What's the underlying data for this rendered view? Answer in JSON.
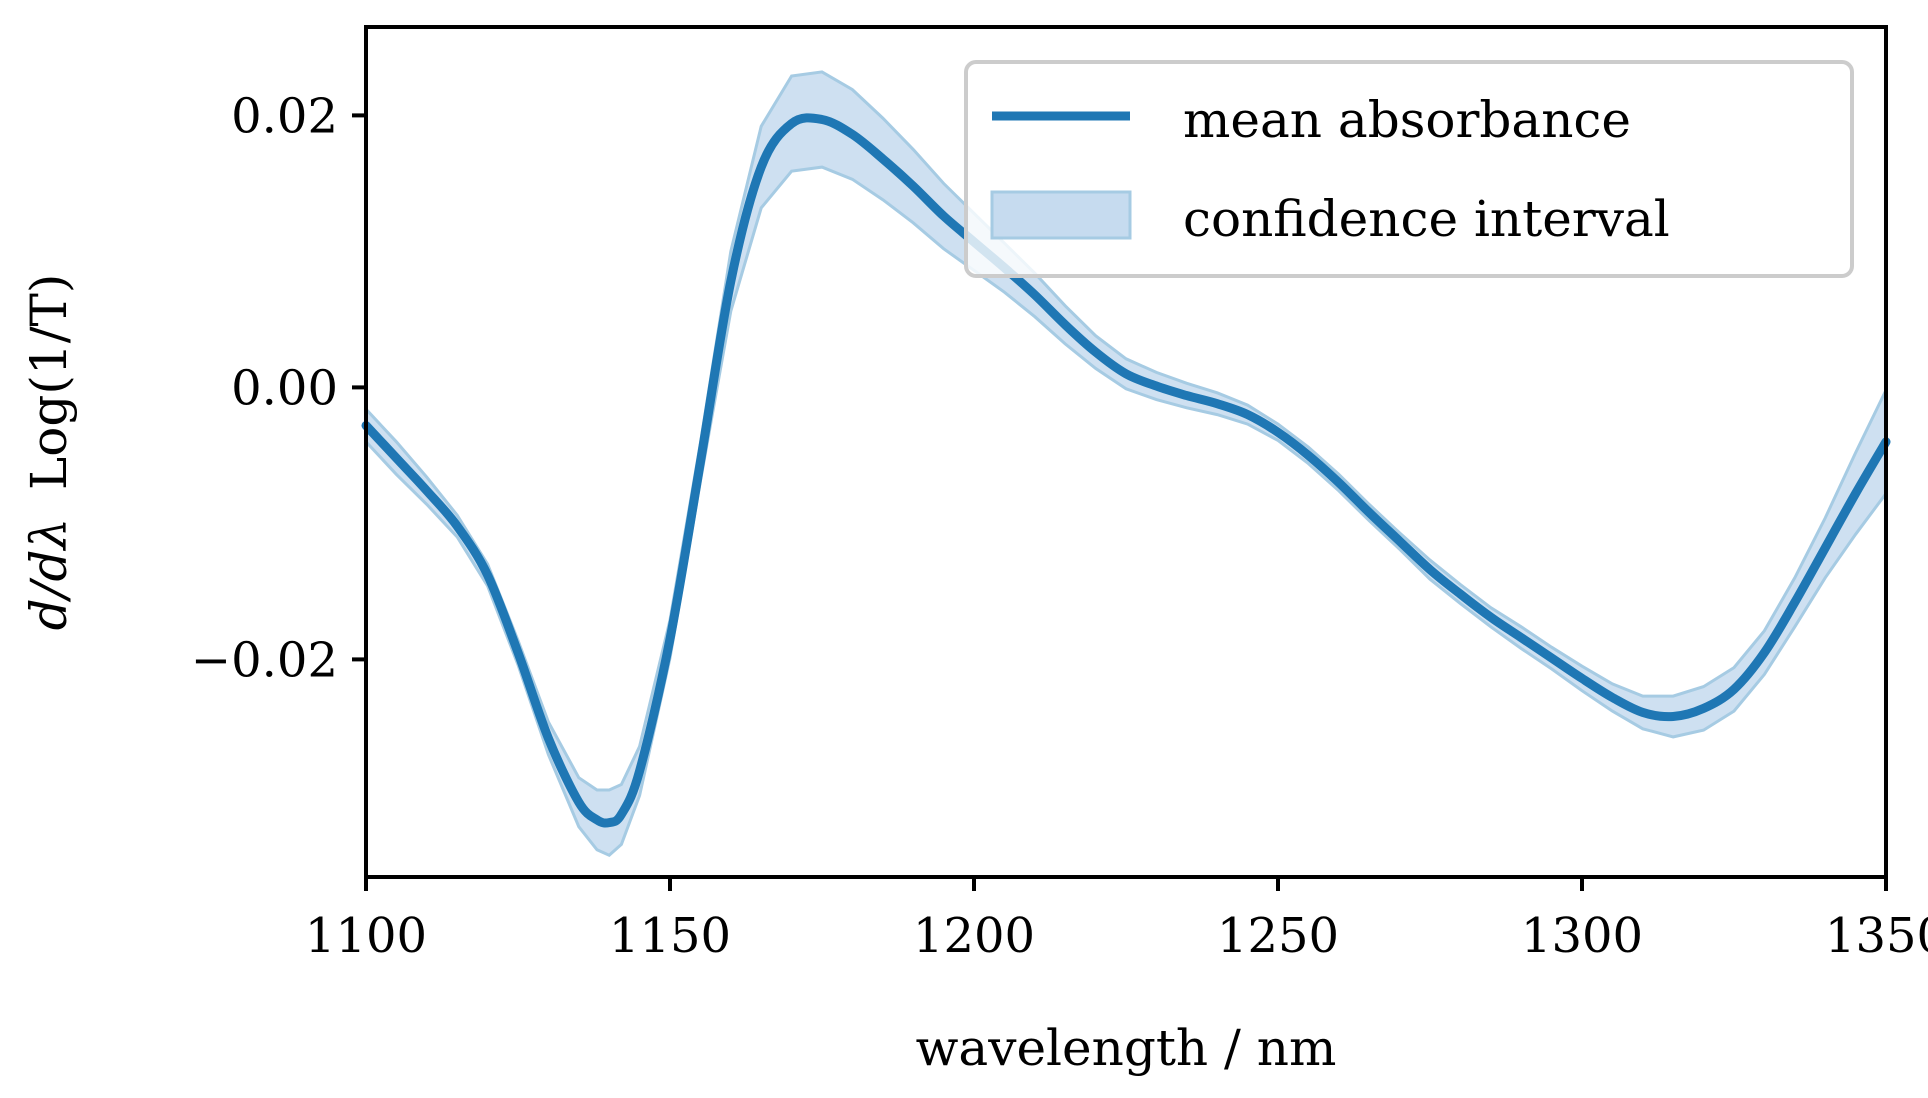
{
  "chart_data": {
    "type": "line",
    "xlabel": "wavelength / nm",
    "ylabel_parts": {
      "derivative": "d/dλ",
      "function": "Log(1/T)"
    },
    "xlim": [
      1100,
      1350
    ],
    "ylim": [
      -0.036,
      0.0265
    ],
    "xticks": [
      1100,
      1150,
      1200,
      1250,
      1300,
      1350
    ],
    "xtick_labels": [
      "1100",
      "1150",
      "1200",
      "1250",
      "1300",
      "1350"
    ],
    "yticks": [
      0.02,
      0.0,
      -0.02
    ],
    "ytick_labels": [
      "0.02",
      "0.00",
      "−0.02"
    ],
    "grid": false,
    "legend_position": "top-right",
    "colors": {
      "line": "#1f77b4",
      "band_fill": "#c6dbef",
      "band_edge": "#a6cbe3"
    },
    "series": [
      {
        "name": "mean absorbance",
        "kind": "line",
        "x": [
          1100,
          1105,
          1110,
          1115,
          1120,
          1125,
          1130,
          1135,
          1138,
          1140,
          1142,
          1145,
          1150,
          1155,
          1160,
          1165,
          1170,
          1175,
          1180,
          1185,
          1190,
          1195,
          1200,
          1205,
          1210,
          1215,
          1220,
          1225,
          1230,
          1235,
          1240,
          1245,
          1250,
          1255,
          1260,
          1265,
          1270,
          1275,
          1280,
          1285,
          1290,
          1295,
          1300,
          1305,
          1310,
          1315,
          1320,
          1325,
          1330,
          1335,
          1340,
          1345,
          1350
        ],
        "values": [
          -0.0028,
          -0.0052,
          -0.0076,
          -0.0102,
          -0.0138,
          -0.0195,
          -0.0258,
          -0.0305,
          -0.0318,
          -0.032,
          -0.0314,
          -0.0282,
          -0.0185,
          -0.0055,
          0.0078,
          0.0162,
          0.0194,
          0.0197,
          0.0186,
          0.0168,
          0.0148,
          0.0126,
          0.0107,
          0.0088,
          0.0068,
          0.0046,
          0.0026,
          0.001,
          0.0001,
          -0.0006,
          -0.0012,
          -0.002,
          -0.0033,
          -0.005,
          -0.007,
          -0.0092,
          -0.0113,
          -0.0134,
          -0.0152,
          -0.0169,
          -0.0184,
          -0.0199,
          -0.0214,
          -0.0228,
          -0.0239,
          -0.0242,
          -0.0236,
          -0.0222,
          -0.0195,
          -0.0158,
          -0.0118,
          -0.0078,
          -0.004
        ]
      },
      {
        "name": "confidence interval",
        "kind": "band",
        "halfwidth": [
          0.0012,
          0.0012,
          0.001,
          0.0008,
          0.0008,
          0.0009,
          0.0012,
          0.0018,
          0.0022,
          0.0024,
          0.0022,
          0.0018,
          0.0014,
          0.0014,
          0.0022,
          0.003,
          0.0035,
          0.0035,
          0.0033,
          0.003,
          0.0027,
          0.0024,
          0.0021,
          0.0018,
          0.0016,
          0.0014,
          0.0012,
          0.0011,
          0.001,
          0.0009,
          0.0008,
          0.0007,
          0.0006,
          0.0006,
          0.0006,
          0.0006,
          0.0006,
          0.0007,
          0.0007,
          0.0007,
          0.0008,
          0.0008,
          0.0009,
          0.001,
          0.0012,
          0.0015,
          0.0016,
          0.0016,
          0.0016,
          0.0018,
          0.0022,
          0.003,
          0.0038
        ]
      }
    ]
  }
}
